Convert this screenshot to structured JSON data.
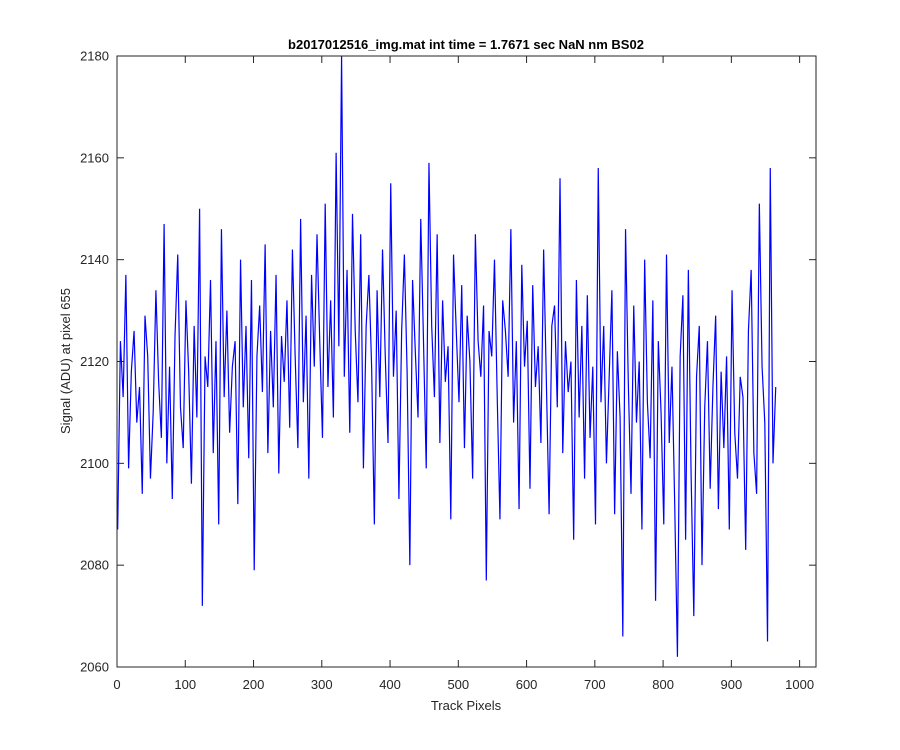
{
  "chart_data": {
    "type": "line",
    "title": "b2017012516_img.mat int time = 1.7671 sec  NaN nm BS02",
    "xlabel": "Track Pixels",
    "ylabel": "Signal (ADU) at pixel 655",
    "xlim": [
      0,
      1024
    ],
    "ylim": [
      2060,
      2180
    ],
    "xticks": [
      0,
      100,
      200,
      300,
      400,
      500,
      600,
      700,
      800,
      900,
      1000
    ],
    "yticks": [
      2060,
      2080,
      2100,
      2120,
      2140,
      2160,
      2180
    ],
    "grid": false,
    "series": [
      {
        "name": "signal",
        "color": "#0000ff",
        "sample_step": 4,
        "x_start": 1,
        "values": [
          2087,
          2124,
          2113,
          2137,
          2099,
          2118,
          2126,
          2108,
          2115,
          2094,
          2129,
          2121,
          2097,
          2110,
          2134,
          2116,
          2105,
          2147,
          2100,
          2119,
          2093,
          2125,
          2141,
          2111,
          2103,
          2132,
          2118,
          2096,
          2127,
          2109,
          2150,
          2072,
          2121,
          2115,
          2136,
          2102,
          2124,
          2088,
          2146,
          2113,
          2130,
          2106,
          2119,
          2124,
          2092,
          2140,
          2111,
          2127,
          2101,
          2136,
          2079,
          2121,
          2131,
          2114,
          2143,
          2102,
          2126,
          2111,
          2137,
          2098,
          2125,
          2116,
          2132,
          2107,
          2142,
          2121,
          2103,
          2148,
          2112,
          2129,
          2097,
          2137,
          2119,
          2145,
          2124,
          2105,
          2151,
          2115,
          2132,
          2109,
          2161,
          2123,
          2180,
          2117,
          2138,
          2106,
          2149,
          2126,
          2112,
          2145,
          2099,
          2127,
          2137,
          2119,
          2088,
          2134,
          2113,
          2142,
          2121,
          2104,
          2155,
          2117,
          2130,
          2093,
          2126,
          2141,
          2118,
          2080,
          2136,
          2122,
          2109,
          2148,
          2124,
          2099,
          2159,
          2127,
          2113,
          2145,
          2104,
          2132,
          2116,
          2123,
          2089,
          2141,
          2126,
          2112,
          2135,
          2103,
          2129,
          2120,
          2097,
          2145,
          2124,
          2117,
          2131,
          2077,
          2126,
          2121,
          2140,
          2113,
          2089,
          2132,
          2126,
          2117,
          2146,
          2108,
          2124,
          2091,
          2139,
          2119,
          2128,
          2095,
          2135,
          2115,
          2123,
          2104,
          2142,
          2116,
          2090,
          2127,
          2131,
          2111,
          2156,
          2102,
          2124,
          2114,
          2120,
          2085,
          2136,
          2109,
          2127,
          2097,
          2133,
          2105,
          2119,
          2088,
          2158,
          2112,
          2127,
          2100,
          2117,
          2134,
          2090,
          2122,
          2109,
          2066,
          2146,
          2116,
          2094,
          2131,
          2108,
          2120,
          2087,
          2140,
          2112,
          2101,
          2132,
          2073,
          2124,
          2110,
          2088,
          2141,
          2104,
          2119,
          2092,
          2062,
          2121,
          2133,
          2085,
          2138,
          2098,
          2070,
          2117,
          2127,
          2080,
          2111,
          2124,
          2095,
          2115,
          2129,
          2091,
          2118,
          2103,
          2121,
          2087,
          2134,
          2106,
          2097,
          2117,
          2113,
          2083,
          2126,
          2138,
          2102,
          2094,
          2151,
          2119,
          2108,
          2065,
          2158,
          2100,
          2115
        ]
      }
    ]
  }
}
